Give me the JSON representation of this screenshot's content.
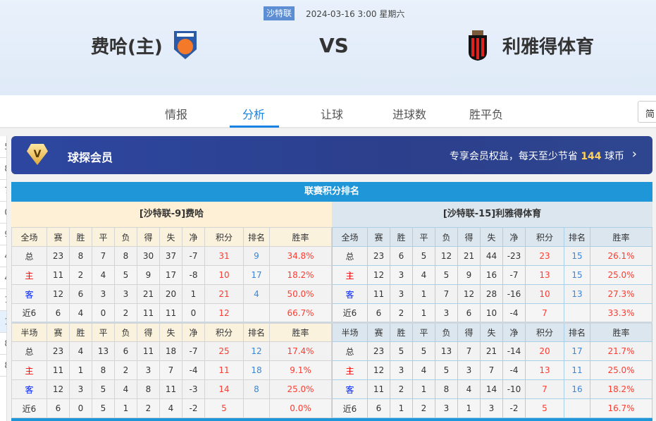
{
  "match": {
    "league": "沙特联",
    "datetime": "2024-03-16 3:00 星期六",
    "home": "费哈(主)",
    "away": "利雅得体育",
    "vs": "VS"
  },
  "nav": {
    "tabs": [
      "情报",
      "分析",
      "让球",
      "进球数",
      "胜平负"
    ],
    "active": 1,
    "lang": "简"
  },
  "side_numbers": [
    "5",
    "8",
    "7",
    "0",
    "9",
    "4",
    "4",
    "1",
    "1",
    "8",
    "8"
  ],
  "banner": {
    "title": "球探会员",
    "text": "专享会员权益，每天至少节省",
    "amount": "144",
    "unit": "球币",
    "badge": "V"
  },
  "standings": {
    "title": "联赛积分排名",
    "columns_full": [
      "全场",
      "赛",
      "胜",
      "平",
      "负",
      "得",
      "失",
      "净",
      "积分",
      "排名",
      "胜率"
    ],
    "columns_half": [
      "半场",
      "赛",
      "胜",
      "平",
      "负",
      "得",
      "失",
      "净",
      "积分",
      "排名",
      "胜率"
    ],
    "home": {
      "name": "[沙特联-9]费哈",
      "full": [
        [
          "总",
          "23",
          "8",
          "7",
          "8",
          "30",
          "37",
          "-7",
          "31",
          "9",
          "34.8%"
        ],
        [
          "主",
          "11",
          "2",
          "4",
          "5",
          "9",
          "17",
          "-8",
          "10",
          "17",
          "18.2%"
        ],
        [
          "客",
          "12",
          "6",
          "3",
          "3",
          "21",
          "20",
          "1",
          "21",
          "4",
          "50.0%"
        ],
        [
          "近6",
          "6",
          "4",
          "0",
          "2",
          "11",
          "11",
          "0",
          "12",
          "",
          "66.7%"
        ]
      ],
      "half": [
        [
          "总",
          "23",
          "4",
          "13",
          "6",
          "11",
          "18",
          "-7",
          "25",
          "12",
          "17.4%"
        ],
        [
          "主",
          "11",
          "1",
          "8",
          "2",
          "3",
          "7",
          "-4",
          "11",
          "18",
          "9.1%"
        ],
        [
          "客",
          "12",
          "3",
          "5",
          "4",
          "8",
          "11",
          "-3",
          "14",
          "8",
          "25.0%"
        ],
        [
          "近6",
          "6",
          "0",
          "5",
          "1",
          "2",
          "4",
          "-2",
          "5",
          "",
          "0.0%"
        ]
      ]
    },
    "away": {
      "name": "[沙特联-15]利雅得体育",
      "full": [
        [
          "总",
          "23",
          "6",
          "5",
          "12",
          "21",
          "44",
          "-23",
          "23",
          "15",
          "26.1%"
        ],
        [
          "主",
          "12",
          "3",
          "4",
          "5",
          "9",
          "16",
          "-7",
          "13",
          "15",
          "25.0%"
        ],
        [
          "客",
          "11",
          "3",
          "1",
          "7",
          "12",
          "28",
          "-16",
          "10",
          "13",
          "27.3%"
        ],
        [
          "近6",
          "6",
          "2",
          "1",
          "3",
          "6",
          "10",
          "-4",
          "7",
          "",
          "33.3%"
        ]
      ],
      "half": [
        [
          "总",
          "23",
          "5",
          "5",
          "13",
          "7",
          "21",
          "-14",
          "20",
          "17",
          "21.7%"
        ],
        [
          "主",
          "12",
          "3",
          "4",
          "5",
          "3",
          "7",
          "-4",
          "13",
          "11",
          "25.0%"
        ],
        [
          "客",
          "11",
          "2",
          "1",
          "8",
          "4",
          "14",
          "-10",
          "7",
          "16",
          "18.2%"
        ],
        [
          "近6",
          "6",
          "1",
          "2",
          "3",
          "1",
          "3",
          "-2",
          "5",
          "",
          "16.7%"
        ]
      ]
    }
  }
}
